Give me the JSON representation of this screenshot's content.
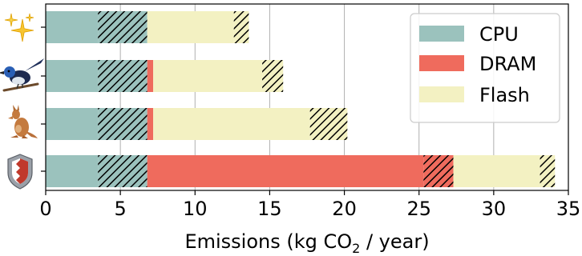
{
  "chart_data": {
    "type": "bar",
    "orientation": "horizontal",
    "stacked": true,
    "categories": [
      "sparkles",
      "bird",
      "kangaroo",
      "shield"
    ],
    "category_icons": [
      "sparkles-icon",
      "wren-bird-icon",
      "kangaroo-icon",
      "shield-icon"
    ],
    "segments": [
      [
        {
          "component": "CPU",
          "hatched": false,
          "start": 0,
          "end": 3.5
        },
        {
          "component": "CPU",
          "hatched": true,
          "start": 3.5,
          "end": 6.8
        },
        {
          "component": "Flash",
          "hatched": false,
          "start": 6.8,
          "end": 12.6
        },
        {
          "component": "Flash",
          "hatched": true,
          "start": 12.6,
          "end": 13.6
        }
      ],
      [
        {
          "component": "CPU",
          "hatched": false,
          "start": 0,
          "end": 3.5
        },
        {
          "component": "CPU",
          "hatched": true,
          "start": 3.5,
          "end": 6.8
        },
        {
          "component": "DRAM",
          "hatched": false,
          "start": 6.8,
          "end": 7.2
        },
        {
          "component": "Flash",
          "hatched": false,
          "start": 7.2,
          "end": 14.5
        },
        {
          "component": "Flash",
          "hatched": true,
          "start": 14.5,
          "end": 15.9
        }
      ],
      [
        {
          "component": "CPU",
          "hatched": false,
          "start": 0,
          "end": 3.5
        },
        {
          "component": "CPU",
          "hatched": true,
          "start": 3.5,
          "end": 6.8
        },
        {
          "component": "DRAM",
          "hatched": false,
          "start": 6.8,
          "end": 7.2
        },
        {
          "component": "Flash",
          "hatched": false,
          "start": 7.2,
          "end": 17.7
        },
        {
          "component": "Flash",
          "hatched": true,
          "start": 17.7,
          "end": 20.2
        }
      ],
      [
        {
          "component": "CPU",
          "hatched": false,
          "start": 0,
          "end": 3.5
        },
        {
          "component": "CPU",
          "hatched": true,
          "start": 3.5,
          "end": 6.8
        },
        {
          "component": "DRAM",
          "hatched": false,
          "start": 6.8,
          "end": 25.3
        },
        {
          "component": "DRAM",
          "hatched": true,
          "start": 25.3,
          "end": 27.3
        },
        {
          "component": "Flash",
          "hatched": false,
          "start": 27.3,
          "end": 33.1
        },
        {
          "component": "Flash",
          "hatched": true,
          "start": 33.1,
          "end": 34.1
        }
      ]
    ],
    "series": [
      {
        "name": "CPU",
        "color": "#9bc2bd"
      },
      {
        "name": "DRAM",
        "color": "#ef6b5d"
      },
      {
        "name": "Flash",
        "color": "#f3f1c2"
      }
    ],
    "xlabel": "Emissions (kg CO",
    "xlabel_subscript": "2",
    "xlabel_suffix": " / year)",
    "xlim": [
      0,
      35
    ],
    "xticks": [
      "0",
      "5",
      "10",
      "15",
      "20",
      "25",
      "30",
      "35"
    ],
    "grid": "vertical",
    "legend_position": "top-right"
  }
}
